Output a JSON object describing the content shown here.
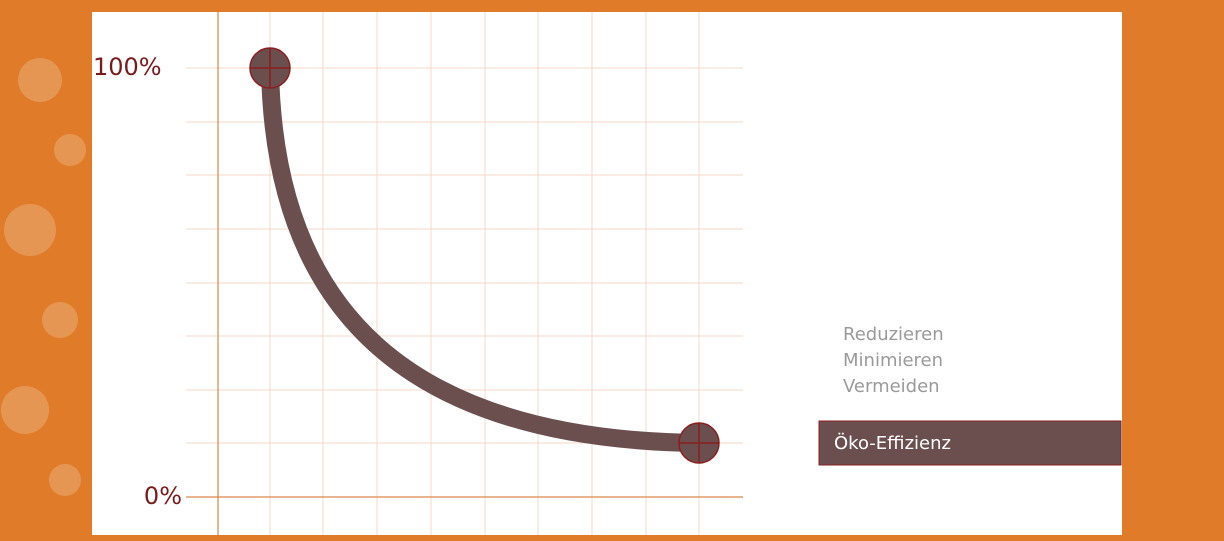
{
  "axis": {
    "top_label": "100%",
    "bottom_label": "0%"
  },
  "list": {
    "items": [
      "Reduzieren",
      "Minimieren",
      "Vermeiden"
    ]
  },
  "highlight": {
    "label": "Öko-Effizienz"
  }
}
